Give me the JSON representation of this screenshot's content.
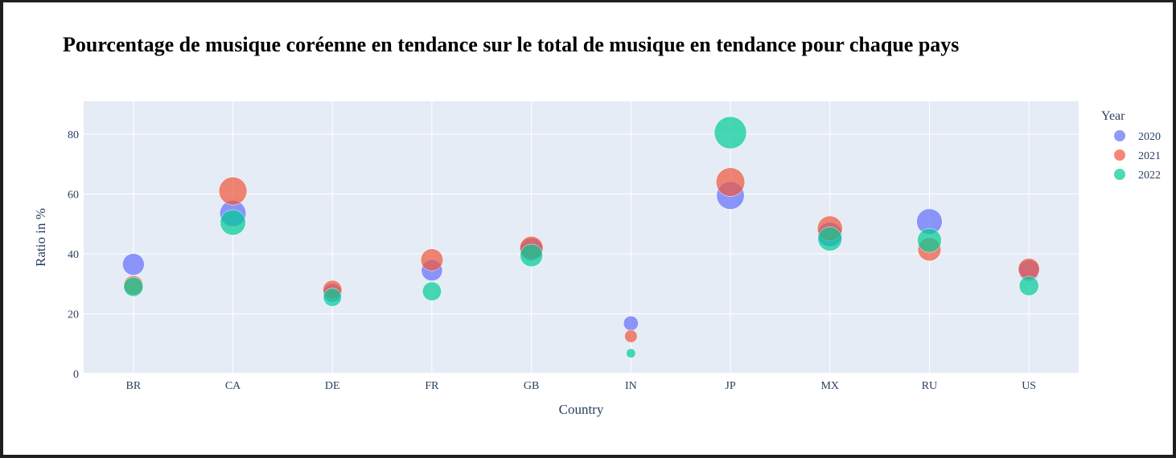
{
  "title": "Pourcentage de musique coréenne en tendance sur le total de musique en tendance pour chaque pays",
  "chart_data": {
    "type": "scatter",
    "xlabel": "Country",
    "ylabel": "Ratio in %",
    "categories": [
      "BR",
      "CA",
      "DE",
      "FR",
      "GB",
      "IN",
      "JP",
      "MX",
      "RU",
      "US"
    ],
    "ylim": [
      0,
      91
    ],
    "yticks": [
      "0",
      "20",
      "40",
      "60",
      "80"
    ],
    "grid": true,
    "legend": {
      "title": "Year",
      "placement": "right"
    },
    "bubble_size_encodes": "y value",
    "series": [
      {
        "name": "2020",
        "color": "#636efa",
        "values": [
          36.5,
          53.5,
          27,
          34.5,
          41.5,
          16.8,
          59.5,
          46.5,
          50.8,
          34.5
        ]
      },
      {
        "name": "2021",
        "color": "#ef553b",
        "values": [
          29.5,
          61,
          28,
          38,
          42,
          12.5,
          64,
          48.5,
          41.5,
          35
        ]
      },
      {
        "name": "2022",
        "color": "#00cc96",
        "values": [
          29,
          50.5,
          25.5,
          27.5,
          39.5,
          6.8,
          80.5,
          45,
          44.5,
          29.3
        ]
      }
    ]
  }
}
